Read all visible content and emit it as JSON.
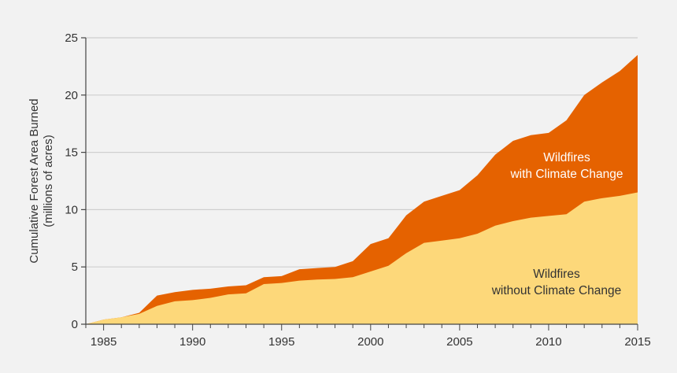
{
  "chart_data": {
    "type": "area",
    "stacked": true,
    "ylabel_line1": "Cumulative Forest Area Burned",
    "ylabel_line2": "(millions of acres)",
    "xlabel": "",
    "xlim": [
      1984,
      2015
    ],
    "ylim": [
      0,
      25
    ],
    "grid": true,
    "x_ticks": [
      "1985",
      "1990",
      "1995",
      "2000",
      "2005",
      "2010",
      "2015"
    ],
    "y_ticks": [
      "0",
      "5",
      "10",
      "15",
      "20",
      "25"
    ],
    "x": [
      1984,
      1985,
      1986,
      1987,
      1988,
      1989,
      1990,
      1991,
      1992,
      1993,
      1994,
      1995,
      1996,
      1997,
      1998,
      1999,
      2000,
      2001,
      2002,
      2003,
      2004,
      2005,
      2006,
      2007,
      2008,
      2009,
      2010,
      2011,
      2012,
      2013,
      2014,
      2015
    ],
    "series": [
      {
        "name_line1": "Wildfires",
        "name_line2": "without Climate Change",
        "color": "#fdd87a",
        "text_color": "#333333",
        "values": [
          0,
          0.4,
          0.6,
          0.9,
          1.6,
          2.0,
          2.1,
          2.3,
          2.6,
          2.7,
          3.5,
          3.6,
          3.8,
          3.9,
          3.95,
          4.1,
          4.6,
          5.1,
          6.2,
          7.1,
          7.3,
          7.5,
          7.9,
          8.6,
          9.0,
          9.3,
          9.45,
          9.6,
          10.7,
          11.0,
          11.2,
          11.5
        ]
      },
      {
        "name_line1": "Wildfires",
        "name_line2": "with Climate Change",
        "color": "#e56200",
        "text_color": "#ffffff",
        "cumulative_values": [
          0,
          0.4,
          0.6,
          1.0,
          2.5,
          2.8,
          3.0,
          3.1,
          3.3,
          3.4,
          4.1,
          4.2,
          4.8,
          4.9,
          5.0,
          5.5,
          7.0,
          7.5,
          9.5,
          10.7,
          11.2,
          11.7,
          13.0,
          14.8,
          16.0,
          16.5,
          16.7,
          17.8,
          20.0,
          21.1,
          22.1,
          23.5
        ]
      }
    ]
  }
}
